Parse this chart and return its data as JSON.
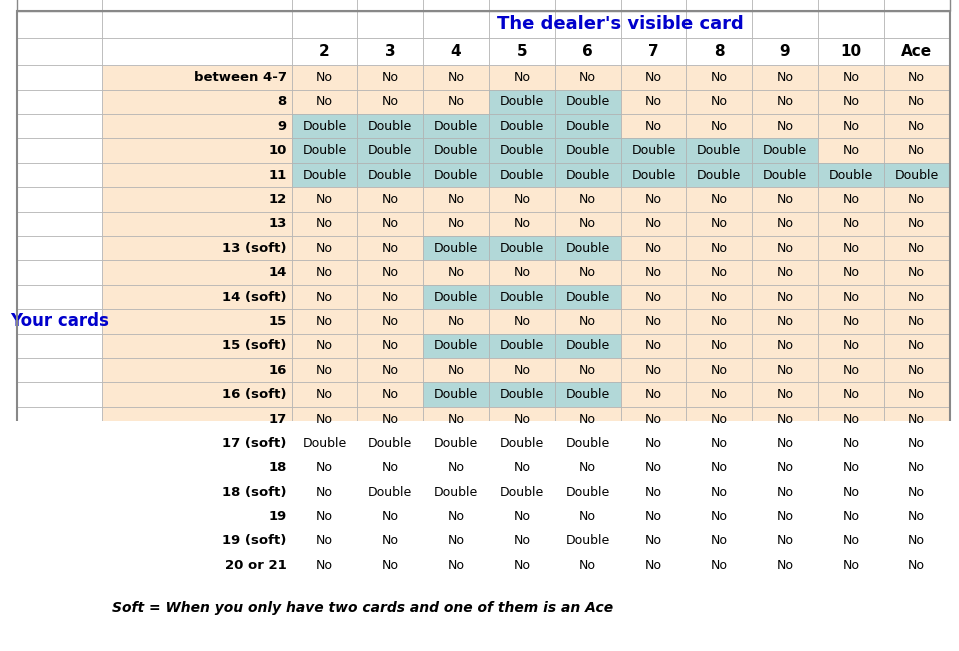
{
  "title": "The dealer's visible card",
  "your_cards_label": "Your cards",
  "footer": "Soft = When you only have two cards and one of them is an Ace",
  "col_headers": [
    "2",
    "3",
    "4",
    "5",
    "6",
    "7",
    "8",
    "9",
    "10",
    "Ace"
  ],
  "row_labels": [
    "between 4-7",
    "8",
    "9",
    "10",
    "11",
    "12",
    "13",
    "13 (soft)",
    "14",
    "14 (soft)",
    "15",
    "15 (soft)",
    "16",
    "16 (soft)",
    "17",
    "17 (soft)",
    "18",
    "18 (soft)",
    "19",
    "19 (soft)",
    "20 or 21"
  ],
  "table_data": [
    [
      "No",
      "No",
      "No",
      "No",
      "No",
      "No",
      "No",
      "No",
      "No",
      "No"
    ],
    [
      "No",
      "No",
      "No",
      "Double",
      "Double",
      "No",
      "No",
      "No",
      "No",
      "No"
    ],
    [
      "Double",
      "Double",
      "Double",
      "Double",
      "Double",
      "No",
      "No",
      "No",
      "No",
      "No"
    ],
    [
      "Double",
      "Double",
      "Double",
      "Double",
      "Double",
      "Double",
      "Double",
      "Double",
      "No",
      "No"
    ],
    [
      "Double",
      "Double",
      "Double",
      "Double",
      "Double",
      "Double",
      "Double",
      "Double",
      "Double",
      "Double"
    ],
    [
      "No",
      "No",
      "No",
      "No",
      "No",
      "No",
      "No",
      "No",
      "No",
      "No"
    ],
    [
      "No",
      "No",
      "No",
      "No",
      "No",
      "No",
      "No",
      "No",
      "No",
      "No"
    ],
    [
      "No",
      "No",
      "Double",
      "Double",
      "Double",
      "No",
      "No",
      "No",
      "No",
      "No"
    ],
    [
      "No",
      "No",
      "No",
      "No",
      "No",
      "No",
      "No",
      "No",
      "No",
      "No"
    ],
    [
      "No",
      "No",
      "Double",
      "Double",
      "Double",
      "No",
      "No",
      "No",
      "No",
      "No"
    ],
    [
      "No",
      "No",
      "No",
      "No",
      "No",
      "No",
      "No",
      "No",
      "No",
      "No"
    ],
    [
      "No",
      "No",
      "Double",
      "Double",
      "Double",
      "No",
      "No",
      "No",
      "No",
      "No"
    ],
    [
      "No",
      "No",
      "No",
      "No",
      "No",
      "No",
      "No",
      "No",
      "No",
      "No"
    ],
    [
      "No",
      "No",
      "Double",
      "Double",
      "Double",
      "No",
      "No",
      "No",
      "No",
      "No"
    ],
    [
      "No",
      "No",
      "No",
      "No",
      "No",
      "No",
      "No",
      "No",
      "No",
      "No"
    ],
    [
      "Double",
      "Double",
      "Double",
      "Double",
      "Double",
      "No",
      "No",
      "No",
      "No",
      "No"
    ],
    [
      "No",
      "No",
      "No",
      "No",
      "No",
      "No",
      "No",
      "No",
      "No",
      "No"
    ],
    [
      "No",
      "Double",
      "Double",
      "Double",
      "Double",
      "No",
      "No",
      "No",
      "No",
      "No"
    ],
    [
      "No",
      "No",
      "No",
      "No",
      "No",
      "No",
      "No",
      "No",
      "No",
      "No"
    ],
    [
      "No",
      "No",
      "No",
      "No",
      "Double",
      "No",
      "No",
      "No",
      "No",
      "No"
    ],
    [
      "No",
      "No",
      "No",
      "No",
      "No",
      "No",
      "No",
      "No",
      "No",
      "No"
    ]
  ],
  "color_double": "#b2d8d8",
  "color_no": "#fde8d0",
  "color_header_bg": "#ffffff",
  "color_title": "#0000cc",
  "color_row_label": "#000000",
  "color_your_cards": "#0000cc",
  "grid_color": "#b0b0b0",
  "outer_border_color": "#888888",
  "fig_bg": "#ffffff",
  "table_bg": "#ffffff"
}
